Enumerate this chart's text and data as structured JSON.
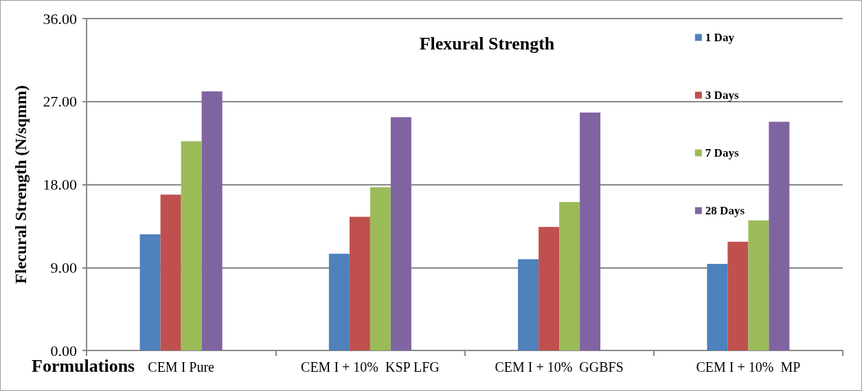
{
  "chart_data": {
    "type": "bar",
    "title": "Flexural Strength",
    "xlabel": "Formulations",
    "ylabel": "Flecural Strength (N/sqmm)",
    "categories": [
      "CEM I Pure",
      "CEM I + 10%  KSP LFG",
      "CEM I + 10%  GGBFS",
      "CEM I + 10%  MP"
    ],
    "series": [
      {
        "name": "1 Day",
        "color": "#4f81bd",
        "values": [
          12.6,
          10.5,
          9.9,
          9.4
        ]
      },
      {
        "name": "3 Days",
        "color": "#c0504d",
        "values": [
          16.9,
          14.5,
          13.4,
          11.8
        ]
      },
      {
        "name": "7 Days",
        "color": "#9bbb59",
        "values": [
          22.7,
          17.7,
          16.1,
          14.1
        ]
      },
      {
        "name": "28 Days",
        "color": "#8064a2",
        "values": [
          28.1,
          25.3,
          25.8,
          24.8
        ]
      }
    ],
    "ylim": [
      0,
      36
    ],
    "yticks": [
      {
        "value": 0,
        "label": "0.00"
      },
      {
        "value": 9,
        "label": "9.00"
      },
      {
        "value": 18,
        "label": "18.00"
      },
      {
        "value": 27,
        "label": "27.00"
      },
      {
        "value": 36,
        "label": "36.00"
      }
    ],
    "grid": "y",
    "legend": "top right"
  }
}
